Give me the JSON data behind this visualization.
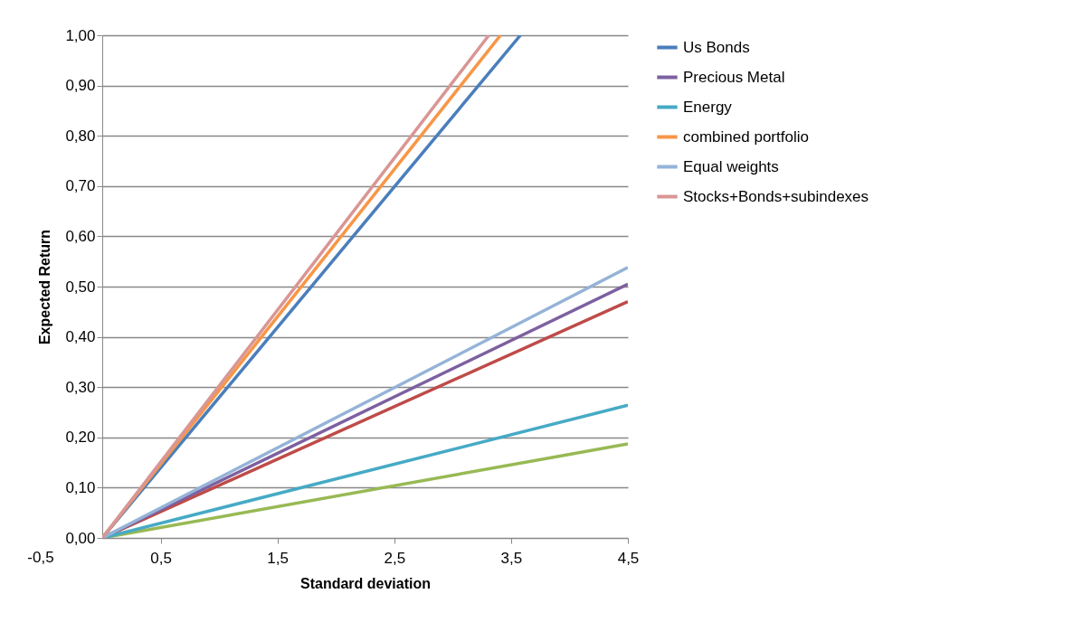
{
  "chart_data": {
    "type": "line",
    "xlabel": "Standard deviation",
    "ylabel": "Expected Return",
    "xlim": [
      0,
      4.5
    ],
    "xticks": [
      {
        "value": 0.5,
        "label": "0,5"
      },
      {
        "value": 1.5,
        "label": "1,5"
      },
      {
        "value": 2.5,
        "label": "2,5"
      },
      {
        "value": 3.5,
        "label": "3,5"
      },
      {
        "value": 4.5,
        "label": "4,5"
      }
    ],
    "ylim": [
      0,
      1
    ],
    "yticks": [
      {
        "value": 0,
        "label": "0,00"
      },
      {
        "value": 0.1,
        "label": "0,10"
      },
      {
        "value": 0.2,
        "label": "0,20"
      },
      {
        "value": 0.3,
        "label": "0,30"
      },
      {
        "value": 0.4,
        "label": "0,40"
      },
      {
        "value": 0.5,
        "label": "0,50"
      },
      {
        "value": 0.6,
        "label": "0,60"
      },
      {
        "value": 0.7,
        "label": "0,70"
      },
      {
        "value": 0.8,
        "label": "0,80"
      },
      {
        "value": 0.9,
        "label": "0,90"
      },
      {
        "value": 1,
        "label": "1,00"
      }
    ],
    "grid": "y",
    "legend": "right",
    "annotations": [
      "-0,5"
    ],
    "series": [
      {
        "color": "#be4b48",
        "x": [
          0,
          4.5
        ],
        "values": [
          0,
          0.47
        ]
      },
      {
        "name": "Us Bonds",
        "color": "#4a7ebb",
        "x": [
          0,
          3.58
        ],
        "values": [
          0,
          1
        ]
      },
      {
        "color": "#98b954",
        "x": [
          0,
          4.5
        ],
        "values": [
          0,
          0.187
        ]
      },
      {
        "name": "Precious Metal",
        "color": "#7d60a0",
        "x": [
          0,
          4.5
        ],
        "values": [
          0,
          0.505
        ]
      },
      {
        "name": "Energy",
        "color": "#46aac5",
        "x": [
          0,
          4.5
        ],
        "values": [
          0,
          0.264
        ]
      },
      {
        "name": "combined portfolio",
        "color": "#f79646",
        "x": [
          0,
          3.41
        ],
        "values": [
          0,
          1
        ]
      },
      {
        "name": "Equal weights",
        "color": "#95b3d7",
        "x": [
          0,
          4.5
        ],
        "values": [
          0,
          0.538
        ]
      },
      {
        "name": "Stocks+Bonds+subindexes",
        "color": "#d99694",
        "x": [
          0,
          3.31
        ],
        "values": [
          0,
          1
        ]
      }
    ]
  }
}
